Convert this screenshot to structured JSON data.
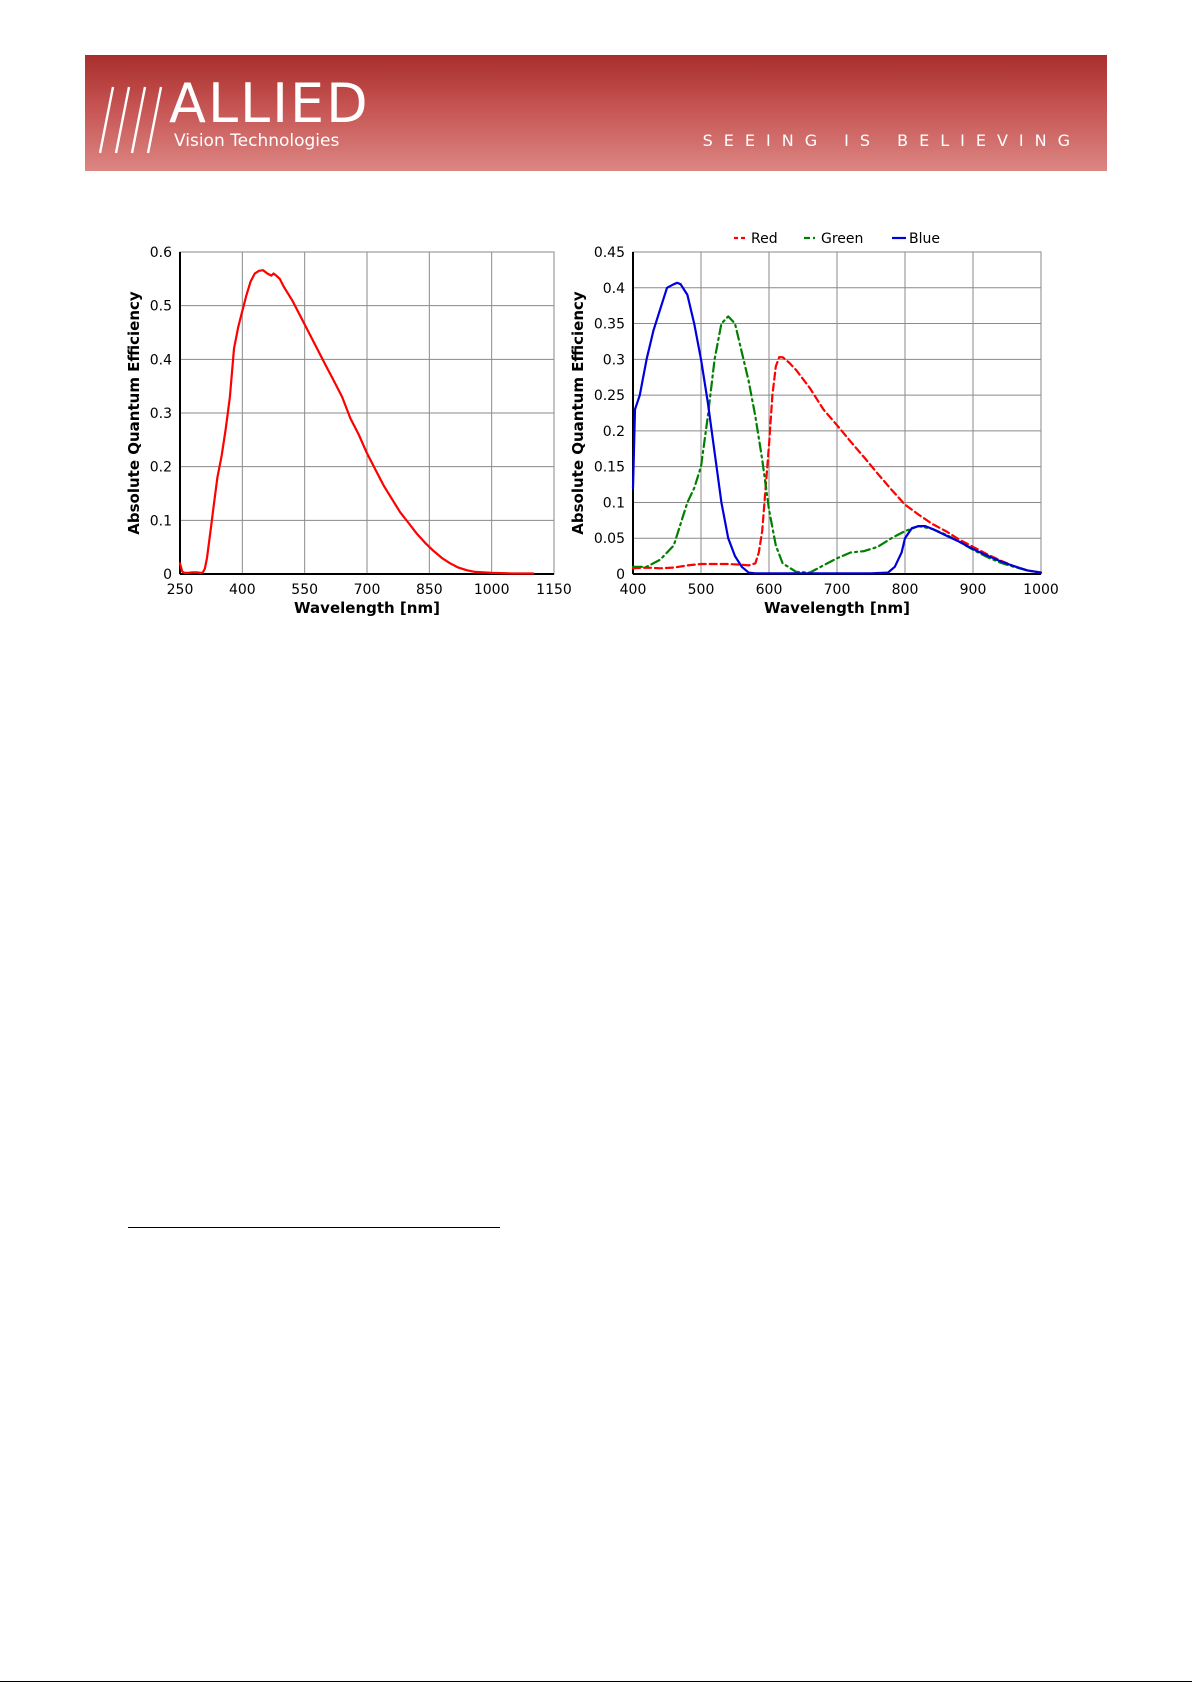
{
  "header": {
    "logo_name": "ALLIED",
    "logo_sub": "Vision Technologies",
    "tagline": "SEEING IS BELIEVING",
    "colors": {
      "banner_top": "#a82e2c",
      "banner_bottom": "#dc8684",
      "text": "#ffffff"
    }
  },
  "chart_data": [
    {
      "type": "line",
      "xlabel": "Wavelength [nm]",
      "ylabel": "Absolute Quantum Efficiency",
      "xlim": [
        250,
        1150
      ],
      "ylim": [
        0,
        0.6
      ],
      "xticks": [
        250,
        400,
        550,
        700,
        850,
        1000,
        1150
      ],
      "yticks": [
        0,
        0.1,
        0.2,
        0.3,
        0.4,
        0.5,
        0.6
      ],
      "ytick_labels": [
        "0",
        "0.1",
        "0.2",
        "0.3",
        "0.4",
        "0.5",
        "0.6"
      ],
      "grid": true,
      "series": [
        {
          "color": "#ff0000",
          "style": "solid",
          "x": [
            250,
            255,
            260,
            270,
            280,
            290,
            300,
            305,
            310,
            315,
            320,
            325,
            330,
            340,
            350,
            360,
            370,
            380,
            385,
            390,
            400,
            410,
            420,
            430,
            440,
            450,
            460,
            470,
            475,
            480,
            490,
            500,
            520,
            540,
            560,
            580,
            600,
            620,
            640,
            660,
            680,
            700,
            720,
            740,
            760,
            780,
            800,
            820,
            840,
            860,
            880,
            900,
            920,
            940,
            960,
            980,
            1000,
            1050,
            1100
          ],
          "y": [
            0.02,
            0.005,
            0.002,
            0.002,
            0.003,
            0.003,
            0.002,
            0.003,
            0.01,
            0.03,
            0.06,
            0.09,
            0.12,
            0.18,
            0.22,
            0.27,
            0.33,
            0.42,
            0.44,
            0.46,
            0.49,
            0.52,
            0.545,
            0.56,
            0.565,
            0.566,
            0.56,
            0.556,
            0.56,
            0.557,
            0.55,
            0.535,
            0.51,
            0.48,
            0.45,
            0.42,
            0.39,
            0.36,
            0.33,
            0.29,
            0.26,
            0.225,
            0.195,
            0.165,
            0.14,
            0.115,
            0.095,
            0.075,
            0.058,
            0.043,
            0.03,
            0.02,
            0.012,
            0.007,
            0.004,
            0.003,
            0.002,
            0.001,
            0.001
          ]
        }
      ]
    },
    {
      "type": "line",
      "xlabel": "Wavelength [nm]",
      "ylabel": "Absolute Quantum Efficiency",
      "xlim": [
        400,
        1000
      ],
      "ylim": [
        0,
        0.45
      ],
      "xticks": [
        400,
        500,
        600,
        700,
        800,
        900,
        1000
      ],
      "yticks": [
        0,
        0.05,
        0.1,
        0.15,
        0.2,
        0.25,
        0.3,
        0.35,
        0.4,
        0.45
      ],
      "ytick_labels": [
        "0",
        "0.05",
        "0.1",
        "0.15",
        "0.2",
        "0.25",
        "0.3",
        "0.35",
        "0.4",
        "0.45"
      ],
      "grid": true,
      "legend": "top",
      "series": [
        {
          "name": "Red",
          "color": "#ff0000",
          "style": "dashed",
          "x": [
            400,
            420,
            440,
            460,
            480,
            500,
            520,
            540,
            560,
            570,
            580,
            585,
            590,
            595,
            600,
            605,
            610,
            615,
            620,
            630,
            640,
            660,
            680,
            700,
            720,
            740,
            760,
            780,
            800,
            820,
            840,
            860,
            880,
            900,
            920,
            940,
            960,
            980,
            1000
          ],
          "y": [
            0.008,
            0.009,
            0.008,
            0.009,
            0.012,
            0.014,
            0.014,
            0.014,
            0.013,
            0.012,
            0.015,
            0.03,
            0.06,
            0.12,
            0.18,
            0.25,
            0.29,
            0.303,
            0.303,
            0.295,
            0.285,
            0.26,
            0.23,
            0.208,
            0.185,
            0.163,
            0.14,
            0.118,
            0.097,
            0.083,
            0.07,
            0.06,
            0.048,
            0.038,
            0.028,
            0.019,
            0.011,
            0.005,
            0.002
          ]
        },
        {
          "name": "Green",
          "color": "#008000",
          "style": "dash-dot",
          "x": [
            400,
            420,
            440,
            460,
            470,
            480,
            490,
            500,
            510,
            520,
            530,
            540,
            550,
            560,
            570,
            580,
            590,
            600,
            610,
            620,
            640,
            660,
            680,
            700,
            720,
            740,
            760,
            780,
            800,
            820,
            840,
            860,
            880,
            900,
            920,
            940,
            960,
            980,
            1000
          ],
          "y": [
            0.01,
            0.01,
            0.02,
            0.04,
            0.07,
            0.1,
            0.12,
            0.15,
            0.22,
            0.3,
            0.35,
            0.36,
            0.35,
            0.31,
            0.27,
            0.22,
            0.16,
            0.09,
            0.04,
            0.015,
            0.003,
            0.002,
            0.012,
            0.022,
            0.03,
            0.032,
            0.038,
            0.05,
            0.06,
            0.067,
            0.063,
            0.055,
            0.045,
            0.034,
            0.024,
            0.016,
            0.01,
            0.005,
            0.002
          ]
        },
        {
          "name": "Blue",
          "color": "#0000dd",
          "style": "solid",
          "x": [
            400,
            403,
            410,
            420,
            430,
            440,
            450,
            460,
            465,
            470,
            480,
            490,
            500,
            510,
            520,
            530,
            540,
            550,
            560,
            570,
            580,
            600,
            650,
            700,
            750,
            775,
            785,
            795,
            800,
            810,
            820,
            830,
            840,
            860,
            880,
            900,
            920,
            940,
            960,
            980,
            1000
          ],
          "y": [
            0.12,
            0.23,
            0.25,
            0.3,
            0.34,
            0.37,
            0.4,
            0.405,
            0.407,
            0.405,
            0.39,
            0.35,
            0.3,
            0.24,
            0.17,
            0.1,
            0.05,
            0.025,
            0.01,
            0.002,
            0.001,
            0.001,
            0.001,
            0.001,
            0.001,
            0.002,
            0.01,
            0.03,
            0.05,
            0.064,
            0.067,
            0.067,
            0.063,
            0.054,
            0.045,
            0.035,
            0.026,
            0.018,
            0.011,
            0.005,
            0.002
          ]
        }
      ]
    }
  ]
}
